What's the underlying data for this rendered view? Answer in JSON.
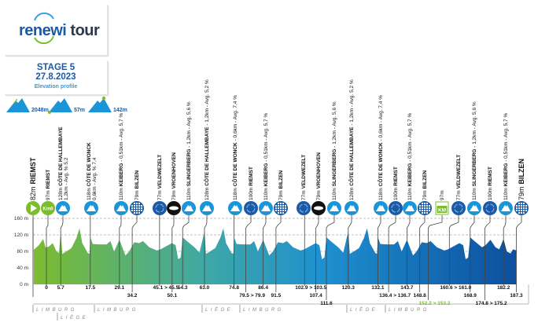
{
  "logo": {
    "brand_part1": "renewi",
    "brand_part2": "tour"
  },
  "stage": {
    "title": "STAGE 5",
    "date": "27.8.2023",
    "subtitle": "Elevation profile"
  },
  "legend": [
    {
      "icon": "mountain-total-climb-icon",
      "label": "2048m"
    },
    {
      "icon": "mountain-lowest-point-icon",
      "label": "57m"
    },
    {
      "icon": "mountain-highest-point-icon",
      "label": "142m"
    }
  ],
  "colors": {
    "green": "#7cbc2f",
    "teal": "#3fa8a4",
    "blue": "#1e90d0",
    "dark_blue": "#0c4f9e",
    "climb_icon": "#1a96d8",
    "km_green": "#7cbc2f"
  },
  "markers": [
    {
      "type": "start",
      "alt": "82m",
      "name": "RIEMST",
      "km": ""
    },
    {
      "type": "km0",
      "alt": "97m",
      "name": "RIEMST",
      "km": "0"
    },
    {
      "type": "climb",
      "alt": "128m",
      "name": "CÔTE DE HALLEMBAYE",
      "detail2": "1,2km - Avg. % 5,2",
      "km": "5.7"
    },
    {
      "type": "climb",
      "alt": "118m",
      "name": "CÔTE DE WONCK",
      "detail2": "0,6km - Avg. % 7,4",
      "km": "17.5"
    },
    {
      "type": "climb",
      "alt": "110m",
      "name": "KEIBERG",
      "detail": " - 0,51km - Avg. 5,7 %",
      "km": "29.1"
    },
    {
      "type": "finish",
      "alt": "79m",
      "name": "BILZEN",
      "km": "34.2"
    },
    {
      "type": "recycle",
      "alt": "77m",
      "name": "VELDWEZELT",
      "km": "45.1 > 45.5"
    },
    {
      "type": "sponsor",
      "alt": "79m",
      "name": "VROENHOVEN",
      "km": "50.1"
    },
    {
      "type": "climb",
      "alt": "110m",
      "name": "SLINGERBERG",
      "detail": " - 1,2km - Avg. 5,6 %",
      "km": "54.3"
    },
    {
      "type": "climb",
      "alt": "128m",
      "name": "CÔTE DE HALLEMBAYE",
      "detail": " - 1,2km - Avg. 5,2 %",
      "km": "63.0"
    },
    {
      "type": "climb",
      "alt": "118m",
      "name": "CÔTE DE WONCK",
      "detail": " - 0,6km - Avg. 7,4 %",
      "km": "74.8"
    },
    {
      "type": "recycle",
      "alt": "100m",
      "name": "RIEMST",
      "km": "79.5 > 79.9"
    },
    {
      "type": "climb",
      "alt": "110m",
      "name": "KEIBERG",
      "detail": " - 0,51km - Avg. 5,7 %",
      "km": "86.4"
    },
    {
      "type": "finish",
      "alt": "79m",
      "name": "BILZEN",
      "km": "91.5"
    },
    {
      "type": "recycle",
      "alt": "77m",
      "name": "VELDWEZELT",
      "km": "102.9 > 103.5"
    },
    {
      "type": "sponsor",
      "alt": "79m",
      "name": "VROENHOVEN",
      "km": "107.4"
    },
    {
      "type": "climb",
      "alt": "110m",
      "name": "SLINGERBERG",
      "detail": " - 1,2km - Avg. 5,6 %",
      "km": "111.6"
    },
    {
      "type": "climb",
      "alt": "128m",
      "name": "CÔTE DE HALLEMBAYE",
      "detail": " - 1,2km - Avg. 5,2 %",
      "km": "120.3"
    },
    {
      "type": "climb",
      "alt": "118m",
      "name": "CÔTE DE WONCK",
      "detail": " - 0,6km - Avg. 7,4 %",
      "km": "132.1"
    },
    {
      "type": "recycle",
      "alt": "100m",
      "name": "RIEMST",
      "km": "136.4 > 136.7"
    },
    {
      "type": "climb",
      "alt": "110m",
      "name": "KEIBERG",
      "detail": " - 0,51km - Avg. 5,7 %",
      "km": "143.7"
    },
    {
      "type": "finish",
      "alt": "79m",
      "name": "BILZEN",
      "km": "148.8"
    },
    {
      "type": "greenkm",
      "alt": "97m",
      "name": "",
      "km": "152.2 > 153.2",
      "icon_text": "KM"
    },
    {
      "type": "recycle",
      "alt": "77m",
      "name": "VELDWEZELT",
      "km": "160.6 > 161.0"
    },
    {
      "type": "climb",
      "alt": "110m",
      "name": "SLINGERBERG",
      "detail": " - 1,2km - Avg. 5,6 %",
      "km": "168.9"
    },
    {
      "type": "recycle",
      "alt": "100m",
      "name": "RIEMST",
      "km": "174.8 > 175.2"
    },
    {
      "type": "climb",
      "alt": "110m",
      "name": "KEIBERG",
      "detail": " - 0,51km - Avg. 5,7 %",
      "km": "182.2"
    },
    {
      "type": "finish",
      "alt": "79m",
      "name": "BILZEN",
      "km": "187.3"
    }
  ],
  "km0_icon_text": "Km0",
  "regions": [
    "LIMBURG",
    "LIÈGE",
    "LIMBURG",
    "LIÈGE",
    "LIMBURG",
    "LIÈGE",
    "LIMBURG"
  ],
  "chart_data": {
    "type": "area",
    "ylabel_ticks": [
      "0 m",
      "40 m",
      "80 m",
      "120 m",
      "160 m"
    ],
    "ylim": [
      0,
      160
    ],
    "xlim_km": [
      -5,
      187.3
    ],
    "grid": "dashed at 80, 120, 160 m",
    "color_gradient": [
      "#7cbc2f",
      "#3fa8a4",
      "#1e90d0",
      "#0c4f9e"
    ],
    "profile": [
      [
        -5,
        84
      ],
      [
        -3,
        95
      ],
      [
        -1.3,
        110
      ],
      [
        -0.3,
        89
      ],
      [
        1,
        92
      ],
      [
        2.5,
        100
      ],
      [
        4,
        80
      ],
      [
        5,
        76
      ],
      [
        5.7,
        128
      ],
      [
        6.3,
        74
      ],
      [
        8,
        80
      ],
      [
        10,
        88
      ],
      [
        12,
        113
      ],
      [
        13.2,
        136
      ],
      [
        14.3,
        100
      ],
      [
        16.5,
        76
      ],
      [
        17.2,
        74
      ],
      [
        17.5,
        114
      ],
      [
        18.5,
        98
      ],
      [
        21,
        97
      ],
      [
        24,
        97
      ],
      [
        25.5,
        105
      ],
      [
        27,
        80
      ],
      [
        29.1,
        108
      ],
      [
        31.5,
        70
      ],
      [
        33,
        80
      ],
      [
        35,
        102
      ],
      [
        37,
        100
      ],
      [
        38.5,
        105
      ],
      [
        41,
        90
      ],
      [
        44,
        82
      ],
      [
        45.5,
        85
      ],
      [
        47,
        90
      ],
      [
        50,
        100
      ],
      [
        51.5,
        95
      ],
      [
        52.5,
        61
      ],
      [
        53.5,
        65
      ],
      [
        54.3,
        114
      ],
      [
        56,
        105
      ],
      [
        59,
        90
      ],
      [
        61,
        77
      ],
      [
        63,
        128
      ],
      [
        63.6,
        74
      ],
      [
        65.3,
        80
      ],
      [
        67.3,
        88
      ],
      [
        69.3,
        113
      ],
      [
        70.5,
        136
      ],
      [
        71.6,
        100
      ],
      [
        73.8,
        76
      ],
      [
        74.5,
        74
      ],
      [
        74.8,
        114
      ],
      [
        75.8,
        98
      ],
      [
        78.3,
        97
      ],
      [
        81.3,
        97
      ],
      [
        82.8,
        105
      ],
      [
        84.3,
        80
      ],
      [
        86.4,
        108
      ],
      [
        88.8,
        70
      ],
      [
        90.3,
        80
      ],
      [
        92.3,
        102
      ],
      [
        94.3,
        100
      ],
      [
        95.8,
        105
      ],
      [
        98.3,
        90
      ],
      [
        101.3,
        82
      ],
      [
        102.8,
        85
      ],
      [
        104.3,
        90
      ],
      [
        107.3,
        100
      ],
      [
        108.8,
        95
      ],
      [
        109.8,
        61
      ],
      [
        110.8,
        65
      ],
      [
        111.6,
        114
      ],
      [
        113.3,
        105
      ],
      [
        116.3,
        90
      ],
      [
        118.3,
        77
      ],
      [
        120.3,
        128
      ],
      [
        120.9,
        74
      ],
      [
        122.6,
        80
      ],
      [
        124.6,
        88
      ],
      [
        126.6,
        113
      ],
      [
        127.8,
        136
      ],
      [
        128.9,
        100
      ],
      [
        131.1,
        76
      ],
      [
        131.8,
        74
      ],
      [
        132.1,
        114
      ],
      [
        133.1,
        98
      ],
      [
        135.6,
        97
      ],
      [
        138.6,
        97
      ],
      [
        140.1,
        105
      ],
      [
        141.6,
        80
      ],
      [
        143.7,
        108
      ],
      [
        146.1,
        70
      ],
      [
        147.6,
        80
      ],
      [
        149.6,
        102
      ],
      [
        151.6,
        100
      ],
      [
        153.1,
        105
      ],
      [
        155.6,
        90
      ],
      [
        158.6,
        82
      ],
      [
        160.1,
        85
      ],
      [
        161.6,
        90
      ],
      [
        164.6,
        100
      ],
      [
        166.1,
        95
      ],
      [
        167.1,
        61
      ],
      [
        168.1,
        65
      ],
      [
        168.9,
        114
      ],
      [
        170.6,
        105
      ],
      [
        173.6,
        90
      ],
      [
        175,
        95
      ],
      [
        177,
        108
      ],
      [
        179,
        90
      ],
      [
        180.5,
        85
      ],
      [
        182.2,
        110
      ],
      [
        183.5,
        80
      ],
      [
        185,
        75
      ],
      [
        186,
        85
      ],
      [
        187.3,
        82
      ]
    ]
  }
}
